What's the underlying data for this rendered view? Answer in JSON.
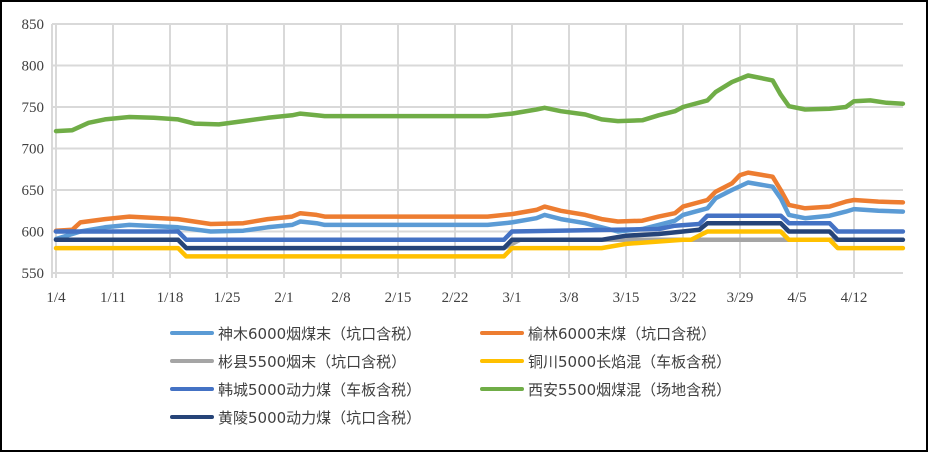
{
  "chart_data": {
    "type": "line",
    "title": "",
    "xlabel": "",
    "ylabel": "",
    "ylim": [
      550,
      850
    ],
    "yticks": [
      550,
      600,
      650,
      700,
      750,
      800,
      850
    ],
    "xtick_labels": [
      "1/4",
      "1/11",
      "1/18",
      "1/25",
      "2/1",
      "2/8",
      "2/15",
      "2/22",
      "3/1",
      "3/8",
      "3/15",
      "3/22",
      "3/29",
      "4/5",
      "4/12"
    ],
    "x_range_days": [
      0,
      104
    ],
    "grid": true,
    "legend_position": "bottom",
    "series": [
      {
        "name": "神木6000烟煤末（坑口含税）",
        "color": "#5B9BD5",
        "points": [
          [
            0,
            591
          ],
          [
            3,
            600
          ],
          [
            6,
            605
          ],
          [
            9,
            608
          ],
          [
            15,
            605
          ],
          [
            19,
            600
          ],
          [
            23,
            601
          ],
          [
            26,
            605
          ],
          [
            29,
            608
          ],
          [
            30,
            612
          ],
          [
            32,
            610
          ],
          [
            33,
            608
          ],
          [
            53,
            608
          ],
          [
            56,
            611
          ],
          [
            59,
            616
          ],
          [
            60,
            620
          ],
          [
            62,
            615
          ],
          [
            65,
            610
          ],
          [
            67,
            605
          ],
          [
            69,
            600
          ],
          [
            72,
            603
          ],
          [
            74,
            608
          ],
          [
            76,
            613
          ],
          [
            77,
            620
          ],
          [
            80,
            628
          ],
          [
            81,
            640
          ],
          [
            83,
            650
          ],
          [
            85,
            659
          ],
          [
            88,
            654
          ],
          [
            89,
            640
          ],
          [
            90,
            620
          ],
          [
            92,
            616
          ],
          [
            95,
            619
          ],
          [
            97,
            624
          ],
          [
            98,
            627
          ],
          [
            101,
            625
          ],
          [
            104,
            624
          ]
        ]
      },
      {
        "name": "榆林6000末煤（坑口含税）",
        "color": "#ED7D31",
        "points": [
          [
            0,
            601
          ],
          [
            2,
            602
          ],
          [
            3,
            611
          ],
          [
            6,
            615
          ],
          [
            9,
            618
          ],
          [
            15,
            615
          ],
          [
            19,
            609
          ],
          [
            23,
            610
          ],
          [
            26,
            615
          ],
          [
            29,
            618
          ],
          [
            30,
            622
          ],
          [
            32,
            620
          ],
          [
            33,
            618
          ],
          [
            53,
            618
          ],
          [
            56,
            621
          ],
          [
            59,
            626
          ],
          [
            60,
            630
          ],
          [
            62,
            625
          ],
          [
            65,
            620
          ],
          [
            67,
            615
          ],
          [
            69,
            612
          ],
          [
            72,
            613
          ],
          [
            74,
            618
          ],
          [
            76,
            622
          ],
          [
            77,
            630
          ],
          [
            80,
            638
          ],
          [
            81,
            648
          ],
          [
            83,
            658
          ],
          [
            84,
            668
          ],
          [
            85,
            671
          ],
          [
            88,
            666
          ],
          [
            89,
            650
          ],
          [
            90,
            632
          ],
          [
            92,
            628
          ],
          [
            95,
            630
          ],
          [
            97,
            636
          ],
          [
            98,
            638
          ],
          [
            101,
            636
          ],
          [
            104,
            635
          ]
        ]
      },
      {
        "name": "彬县5500烟末（坑口含税）",
        "color": "#A5A5A5",
        "points": [
          [
            0,
            590
          ],
          [
            15,
            590
          ],
          [
            16,
            580
          ],
          [
            55,
            580
          ],
          [
            56,
            585
          ],
          [
            57,
            590
          ],
          [
            104,
            590
          ]
        ]
      },
      {
        "name": "铜川5000长焰混（车板含税）",
        "color": "#FFC000",
        "points": [
          [
            0,
            580
          ],
          [
            15,
            580
          ],
          [
            16,
            570
          ],
          [
            55,
            570
          ],
          [
            56,
            580
          ],
          [
            67,
            580
          ],
          [
            70,
            585
          ],
          [
            77,
            590
          ],
          [
            78,
            590
          ],
          [
            80,
            600
          ],
          [
            89,
            600
          ],
          [
            90,
            590
          ],
          [
            95,
            590
          ],
          [
            96,
            580
          ],
          [
            104,
            580
          ]
        ]
      },
      {
        "name": "韩城5000动力煤（车板含税）",
        "color": "#4472C4",
        "points": [
          [
            0,
            600
          ],
          [
            15,
            600
          ],
          [
            16,
            590
          ],
          [
            55,
            590
          ],
          [
            56,
            600
          ],
          [
            74,
            603
          ],
          [
            76,
            607
          ],
          [
            79,
            609
          ],
          [
            80,
            619
          ],
          [
            89,
            619
          ],
          [
            90,
            610
          ],
          [
            95,
            610
          ],
          [
            96,
            600
          ],
          [
            104,
            600
          ]
        ]
      },
      {
        "name": "西安5500烟煤混（场地含税）",
        "color": "#70AD47",
        "points": [
          [
            0,
            721
          ],
          [
            2,
            722
          ],
          [
            4,
            731
          ],
          [
            6,
            735
          ],
          [
            9,
            738
          ],
          [
            12,
            737
          ],
          [
            15,
            735
          ],
          [
            17,
            730
          ],
          [
            20,
            729
          ],
          [
            23,
            733
          ],
          [
            26,
            737
          ],
          [
            29,
            740
          ],
          [
            30,
            742
          ],
          [
            32,
            740
          ],
          [
            33,
            739
          ],
          [
            53,
            739
          ],
          [
            56,
            742
          ],
          [
            59,
            747
          ],
          [
            60,
            749
          ],
          [
            62,
            745
          ],
          [
            65,
            741
          ],
          [
            67,
            735
          ],
          [
            69,
            733
          ],
          [
            72,
            734
          ],
          [
            74,
            740
          ],
          [
            76,
            745
          ],
          [
            77,
            750
          ],
          [
            80,
            758
          ],
          [
            81,
            768
          ],
          [
            83,
            780
          ],
          [
            85,
            788
          ],
          [
            88,
            782
          ],
          [
            89,
            765
          ],
          [
            90,
            751
          ],
          [
            92,
            747
          ],
          [
            95,
            748
          ],
          [
            97,
            750
          ],
          [
            98,
            757
          ],
          [
            100,
            758
          ],
          [
            102,
            755
          ],
          [
            104,
            754
          ]
        ]
      },
      {
        "name": "黄陵5000动力煤（坑口含税）",
        "color": "#264478",
        "points": [
          [
            0,
            590
          ],
          [
            15,
            590
          ],
          [
            16,
            580
          ],
          [
            55,
            580
          ],
          [
            56,
            590
          ],
          [
            67,
            590
          ],
          [
            70,
            595
          ],
          [
            74,
            597
          ],
          [
            77,
            600
          ],
          [
            79,
            602
          ],
          [
            80,
            610
          ],
          [
            89,
            610
          ],
          [
            90,
            600
          ],
          [
            95,
            600
          ],
          [
            96,
            590
          ],
          [
            104,
            590
          ]
        ]
      }
    ]
  },
  "legend": {
    "items": [
      {
        "label": "神木6000烟煤末（坑口含税）",
        "color": "#5B9BD5"
      },
      {
        "label": "榆林6000末煤（坑口含税）",
        "color": "#ED7D31"
      },
      {
        "label": "彬县5500烟末（坑口含税）",
        "color": "#A5A5A5"
      },
      {
        "label": "铜川5000长焰混（车板含税）",
        "color": "#FFC000"
      },
      {
        "label": "韩城5000动力煤（车板含税）",
        "color": "#4472C4"
      },
      {
        "label": "西安5500烟煤混（场地含税）",
        "color": "#70AD47"
      },
      {
        "label": "黄陵5000动力煤（坑口含税）",
        "color": "#264478"
      }
    ]
  },
  "y_axis": {
    "labels": [
      "850",
      "800",
      "750",
      "700",
      "650",
      "600",
      "550"
    ]
  },
  "x_axis": {
    "labels": [
      "1/4",
      "1/11",
      "1/18",
      "1/25",
      "2/1",
      "2/8",
      "2/15",
      "2/22",
      "3/1",
      "3/8",
      "3/15",
      "3/22",
      "3/29",
      "4/5",
      "4/12"
    ]
  }
}
